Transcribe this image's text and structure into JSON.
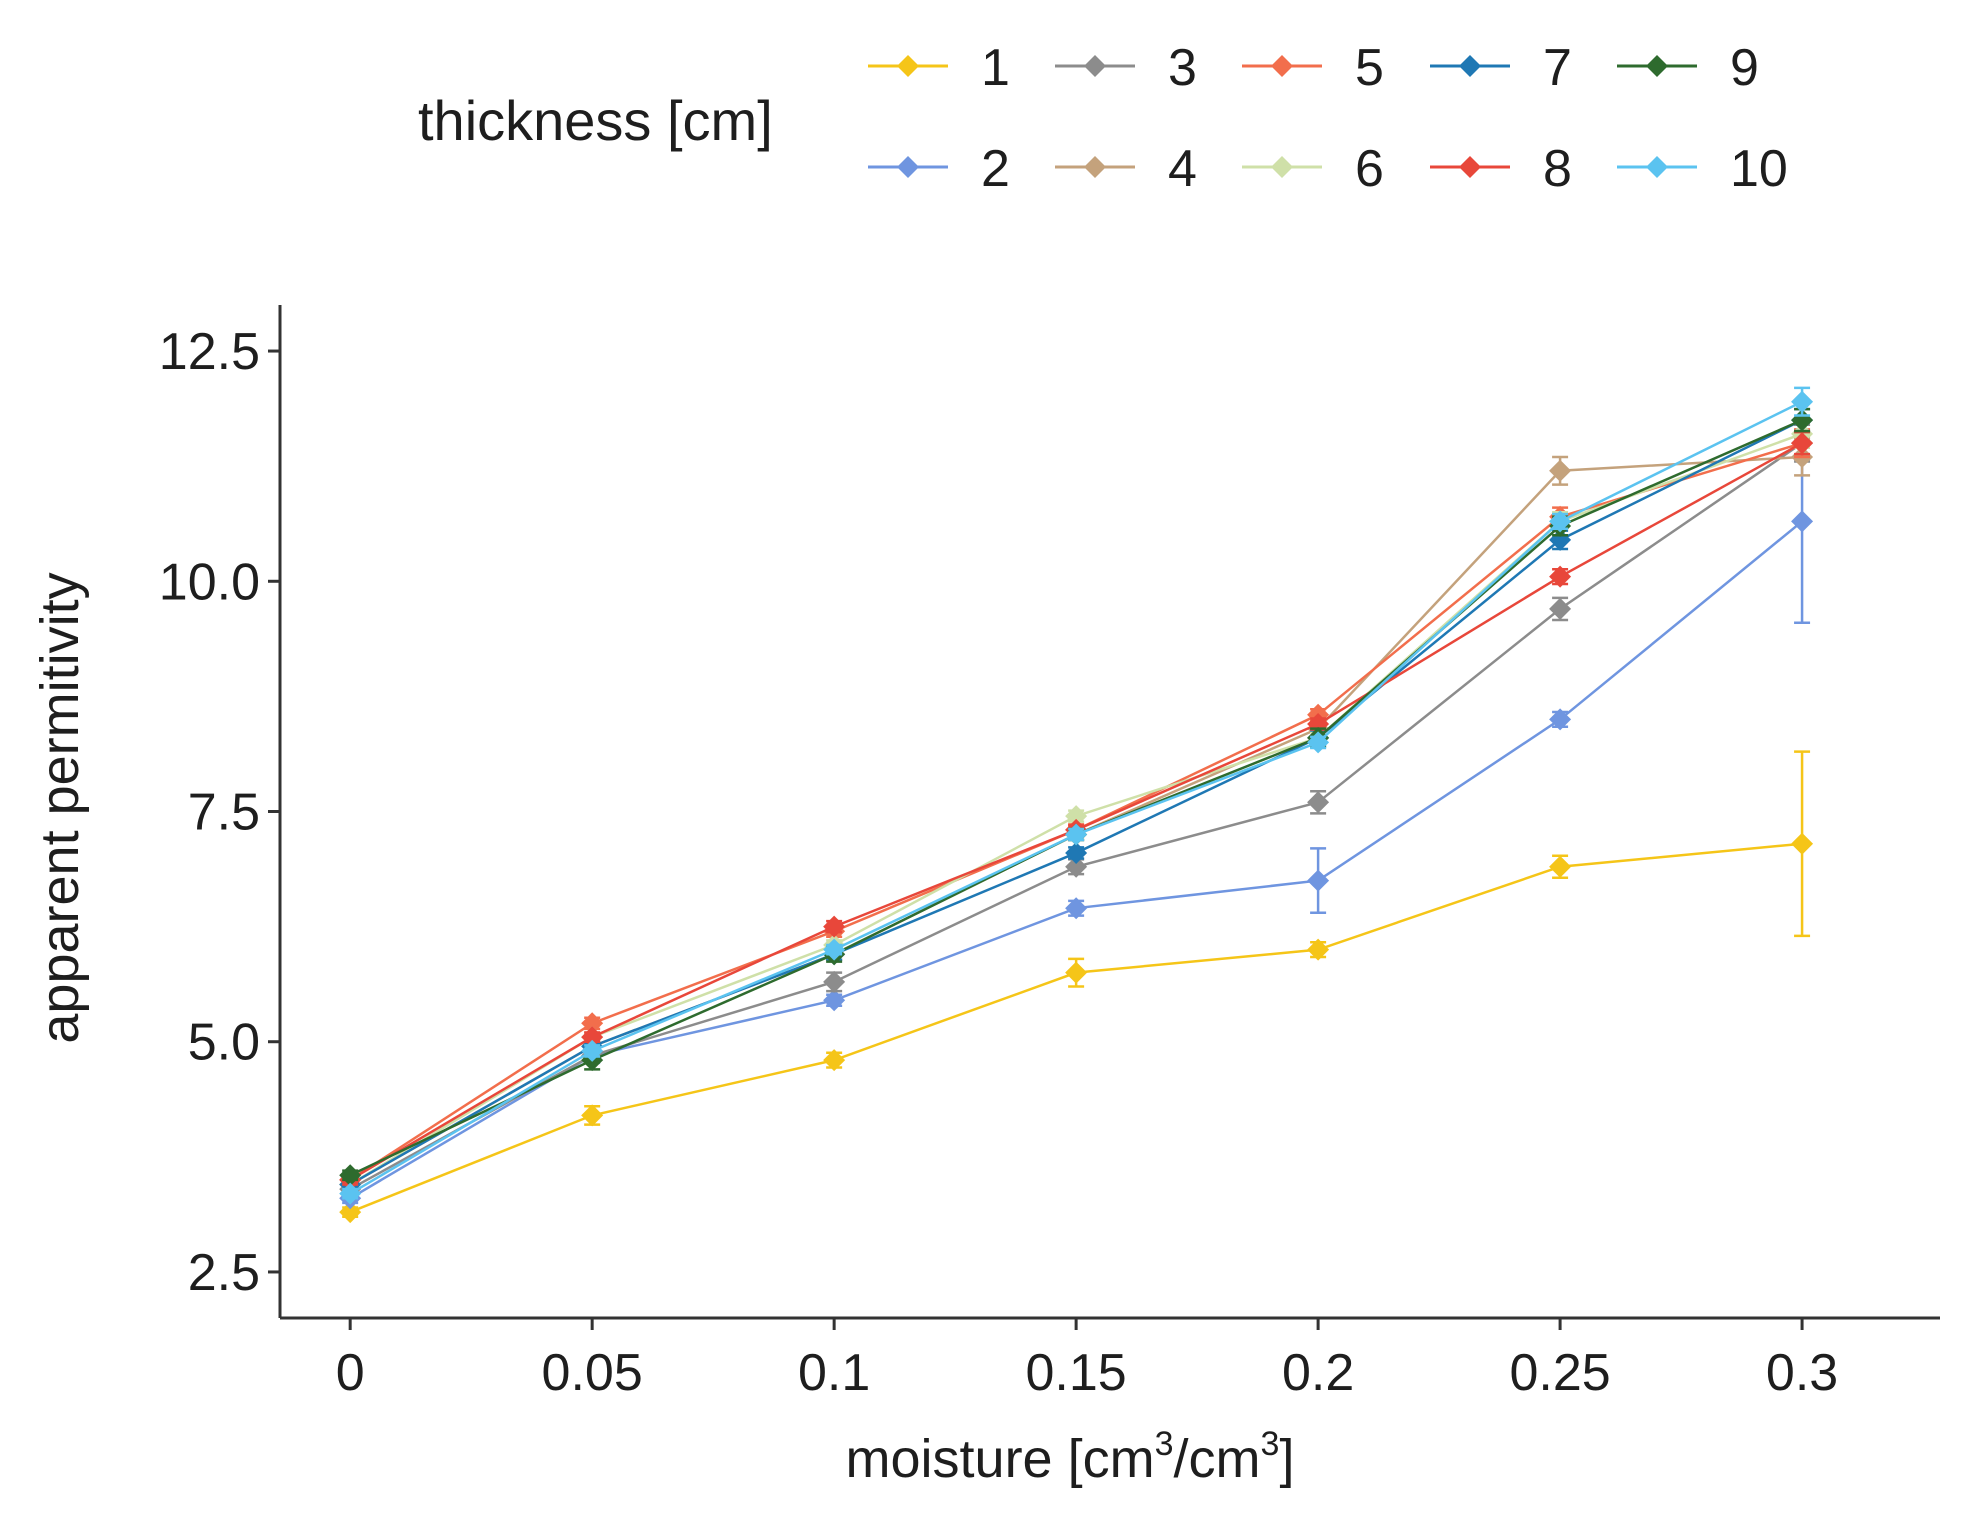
{
  "chart_data": {
    "type": "line",
    "title": "",
    "xlabel": {
      "prefix": "moisture [cm",
      "sup1": "3",
      "mid": "/cm",
      "sup2": "3",
      "suffix": "]"
    },
    "ylabel": "apparent permitivity",
    "legend_title": "thickness [cm]",
    "legend_position": "top",
    "grid": false,
    "x": [
      0,
      0.05,
      0.1,
      0.15,
      0.2,
      0.25,
      0.3
    ],
    "x_tick_labels": [
      "0",
      "0.05",
      "0.1",
      "0.15",
      "0.2",
      "0.25",
      "0.3"
    ],
    "y_ticks": [
      2.5,
      5.0,
      7.5,
      10.0,
      12.5
    ],
    "y_tick_labels": [
      "2.5",
      "5.0",
      "7.5",
      "10.0",
      "12.5"
    ],
    "xlim": [
      -0.0145,
      0.3285
    ],
    "ylim": [
      2.0,
      13.0
    ],
    "series": [
      {
        "name": "1",
        "color": "#f5c518",
        "values": [
          3.15,
          4.2,
          4.8,
          5.75,
          6.0,
          6.9,
          7.15
        ],
        "error": [
          0.05,
          0.1,
          0.08,
          0.15,
          0.08,
          0.12,
          1.0
        ]
      },
      {
        "name": "2",
        "color": "#6f95e0",
        "values": [
          3.3,
          4.85,
          5.45,
          6.45,
          6.75,
          8.5,
          10.65
        ],
        "error": [
          0.05,
          0.08,
          0.06,
          0.08,
          0.35,
          0.08,
          1.1
        ]
      },
      {
        "name": "3",
        "color": "#8c8c8c",
        "values": [
          3.4,
          4.85,
          5.65,
          6.9,
          7.6,
          9.7,
          11.5
        ],
        "error": [
          0.05,
          0.05,
          0.1,
          0.08,
          0.12,
          0.12,
          0.2
        ]
      },
      {
        "name": "4",
        "color": "#c4a27c",
        "values": [
          3.45,
          4.95,
          5.95,
          7.25,
          8.4,
          11.2,
          11.35
        ],
        "error": [
          0.05,
          0.05,
          0.06,
          0.06,
          0.08,
          0.15,
          0.2
        ]
      },
      {
        "name": "5",
        "color": "#f26e4c",
        "values": [
          3.5,
          5.2,
          6.2,
          7.3,
          8.55,
          10.7,
          11.5
        ],
        "error": [
          0.05,
          0.06,
          0.06,
          0.06,
          0.06,
          0.1,
          0.15
        ]
      },
      {
        "name": "6",
        "color": "#cfe0a8",
        "values": [
          3.45,
          5.05,
          6.05,
          7.45,
          8.3,
          10.65,
          11.6
        ],
        "error": [
          0.05,
          0.05,
          0.05,
          0.06,
          0.06,
          0.1,
          0.15
        ]
      },
      {
        "name": "7",
        "color": "#1f78b4",
        "values": [
          3.45,
          4.95,
          5.95,
          7.05,
          8.3,
          10.45,
          11.75
        ],
        "error": [
          0.05,
          0.05,
          0.06,
          0.06,
          0.08,
          0.1,
          0.12
        ]
      },
      {
        "name": "8",
        "color": "#e8473a",
        "values": [
          3.5,
          5.05,
          6.25,
          7.3,
          8.45,
          10.05,
          11.5
        ],
        "error": [
          0.05,
          0.05,
          0.06,
          0.05,
          0.06,
          0.08,
          0.12
        ]
      },
      {
        "name": "9",
        "color": "#2e6b2e",
        "values": [
          3.55,
          4.8,
          5.95,
          7.25,
          8.3,
          10.6,
          11.75
        ],
        "error": [
          0.05,
          0.1,
          0.08,
          0.06,
          0.1,
          0.1,
          0.12
        ]
      },
      {
        "name": "10",
        "color": "#5bc3f0",
        "values": [
          3.35,
          4.9,
          6.0,
          7.25,
          8.25,
          10.65,
          11.95
        ],
        "error": [
          0.05,
          0.06,
          0.05,
          0.06,
          0.06,
          0.08,
          0.15
        ]
      }
    ]
  }
}
